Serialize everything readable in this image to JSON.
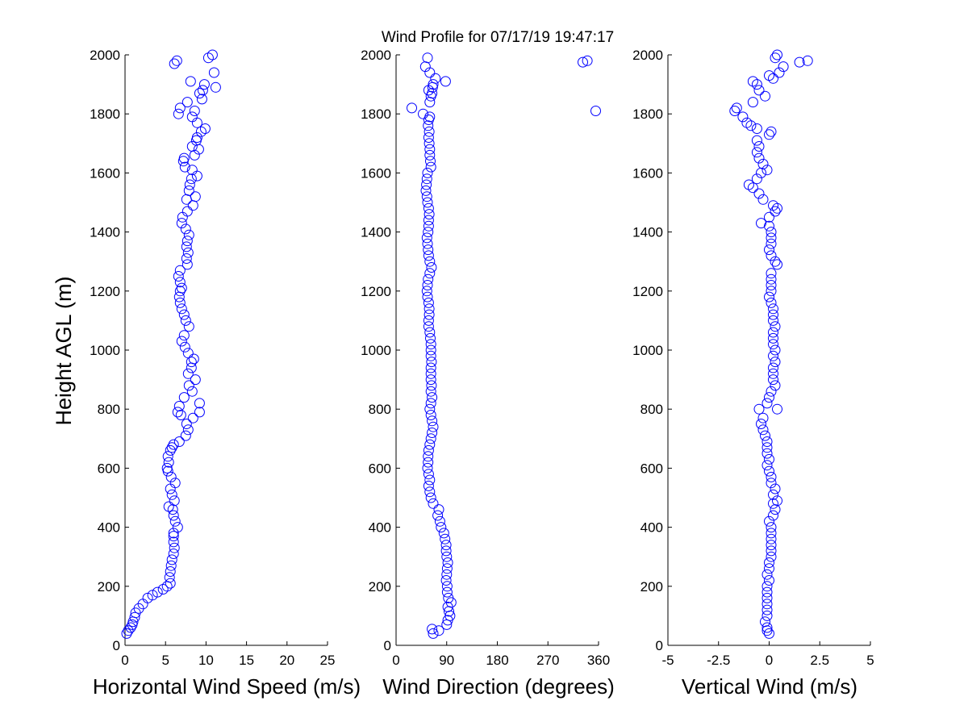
{
  "title": "Wind Profile for  07/17/19 19:47:17",
  "ylabel": "Height AGL (m)",
  "marker_color": "#0000ff",
  "chart_data": [
    {
      "type": "scatter",
      "xlabel": "Horizontal Wind Speed (m/s)",
      "ylabel": "Height AGL (m)",
      "xlim": [
        0,
        25
      ],
      "ylim": [
        0,
        2000
      ],
      "xticks": [
        "0",
        "5",
        "10",
        "15",
        "20",
        "25"
      ],
      "xtick_values": [
        0,
        5,
        10,
        15,
        20,
        25
      ],
      "yticks": [
        "0",
        "200",
        "400",
        "600",
        "800",
        "1000",
        "1200",
        "1400",
        "1600",
        "1800",
        "2000"
      ],
      "ytick_values": [
        0,
        200,
        400,
        600,
        800,
        1000,
        1200,
        1400,
        1600,
        1800,
        2000
      ],
      "grid": false,
      "marker": "open-circle",
      "points": [
        [
          0.2,
          40
        ],
        [
          0.4,
          50
        ],
        [
          0.7,
          60
        ],
        [
          0.9,
          70
        ],
        [
          1.0,
          80
        ],
        [
          1.2,
          95
        ],
        [
          1.3,
          110
        ],
        [
          1.7,
          125
        ],
        [
          2.2,
          140
        ],
        [
          2.8,
          160
        ],
        [
          3.4,
          170
        ],
        [
          4.0,
          180
        ],
        [
          4.7,
          190
        ],
        [
          5.2,
          200
        ],
        [
          5.6,
          210
        ],
        [
          5.5,
          230
        ],
        [
          5.6,
          250
        ],
        [
          5.7,
          270
        ],
        [
          5.8,
          290
        ],
        [
          6.0,
          310
        ],
        [
          6.1,
          330
        ],
        [
          6.0,
          350
        ],
        [
          6.0,
          370
        ],
        [
          6.0,
          380
        ],
        [
          6.5,
          400
        ],
        [
          6.2,
          420
        ],
        [
          6.0,
          440
        ],
        [
          5.9,
          460
        ],
        [
          5.4,
          470
        ],
        [
          6.1,
          490
        ],
        [
          5.8,
          510
        ],
        [
          5.6,
          530
        ],
        [
          6.2,
          550
        ],
        [
          5.7,
          570
        ],
        [
          5.3,
          590
        ],
        [
          5.2,
          600
        ],
        [
          5.4,
          620
        ],
        [
          5.3,
          640
        ],
        [
          5.6,
          660
        ],
        [
          5.8,
          670
        ],
        [
          6.0,
          680
        ],
        [
          6.7,
          690
        ],
        [
          7.5,
          710
        ],
        [
          7.8,
          730
        ],
        [
          7.6,
          750
        ],
        [
          8.4,
          770
        ],
        [
          6.9,
          780
        ],
        [
          6.5,
          790
        ],
        [
          9.2,
          790
        ],
        [
          6.7,
          810
        ],
        [
          9.2,
          820
        ],
        [
          7.3,
          840
        ],
        [
          8.3,
          860
        ],
        [
          7.9,
          880
        ],
        [
          8.7,
          900
        ],
        [
          7.8,
          920
        ],
        [
          8.2,
          940
        ],
        [
          8.2,
          960
        ],
        [
          8.5,
          970
        ],
        [
          7.8,
          990
        ],
        [
          7.4,
          1010
        ],
        [
          7.0,
          1030
        ],
        [
          7.3,
          1050
        ],
        [
          7.9,
          1080
        ],
        [
          7.5,
          1100
        ],
        [
          7.3,
          1120
        ],
        [
          7.0,
          1140
        ],
        [
          6.8,
          1160
        ],
        [
          6.7,
          1180
        ],
        [
          6.8,
          1200
        ],
        [
          7.0,
          1210
        ],
        [
          6.8,
          1230
        ],
        [
          6.6,
          1250
        ],
        [
          6.8,
          1270
        ],
        [
          7.7,
          1290
        ],
        [
          7.6,
          1310
        ],
        [
          7.8,
          1330
        ],
        [
          7.6,
          1350
        ],
        [
          7.7,
          1370
        ],
        [
          7.9,
          1390
        ],
        [
          7.5,
          1410
        ],
        [
          7.0,
          1430
        ],
        [
          7.1,
          1450
        ],
        [
          7.7,
          1470
        ],
        [
          8.4,
          1490
        ],
        [
          7.6,
          1510
        ],
        [
          8.7,
          1520
        ],
        [
          7.9,
          1540
        ],
        [
          8.0,
          1560
        ],
        [
          8.2,
          1580
        ],
        [
          8.9,
          1590
        ],
        [
          8.3,
          1610
        ],
        [
          7.4,
          1620
        ],
        [
          7.2,
          1640
        ],
        [
          7.3,
          1650
        ],
        [
          8.6,
          1660
        ],
        [
          9.1,
          1680
        ],
        [
          8.3,
          1690
        ],
        [
          8.8,
          1710
        ],
        [
          8.9,
          1720
        ],
        [
          9.4,
          1740
        ],
        [
          9.9,
          1750
        ],
        [
          8.9,
          1770
        ],
        [
          8.3,
          1790
        ],
        [
          8.6,
          1810
        ],
        [
          6.8,
          1820
        ],
        [
          6.6,
          1800
        ],
        [
          7.7,
          1840
        ],
        [
          9.5,
          1850
        ],
        [
          9.2,
          1870
        ],
        [
          9.6,
          1880
        ],
        [
          11.2,
          1890
        ],
        [
          9.8,
          1900
        ],
        [
          8.1,
          1910
        ],
        [
          11.0,
          1940
        ],
        [
          6.1,
          1970
        ],
        [
          6.4,
          1980
        ],
        [
          10.3,
          1990
        ],
        [
          10.8,
          2000
        ]
      ]
    },
    {
      "type": "scatter",
      "xlabel": "Wind Direction (degrees)",
      "ylabel": "",
      "xlim": [
        0,
        360
      ],
      "ylim": [
        0,
        2000
      ],
      "xticks": [
        "0",
        "90",
        "180",
        "270",
        "360"
      ],
      "xtick_values": [
        0,
        90,
        180,
        270,
        360
      ],
      "yticks": [
        "0",
        "200",
        "400",
        "600",
        "800",
        "1000",
        "1200",
        "1400",
        "1600",
        "1800",
        "2000"
      ],
      "ytick_values": [
        0,
        200,
        400,
        600,
        800,
        1000,
        1200,
        1400,
        1600,
        1800,
        2000
      ],
      "grid": false,
      "marker": "open-circle",
      "points": [
        [
          66,
          40
        ],
        [
          64,
          55
        ],
        [
          76,
          50
        ],
        [
          90,
          70
        ],
        [
          92,
          85
        ],
        [
          96,
          100
        ],
        [
          94,
          115
        ],
        [
          92,
          130
        ],
        [
          98,
          145
        ],
        [
          93,
          160
        ],
        [
          91,
          180
        ],
        [
          91,
          200
        ],
        [
          89,
          220
        ],
        [
          90,
          240
        ],
        [
          91,
          260
        ],
        [
          92,
          280
        ],
        [
          90,
          300
        ],
        [
          89,
          320
        ],
        [
          89,
          340
        ],
        [
          87,
          360
        ],
        [
          85,
          380
        ],
        [
          80,
          400
        ],
        [
          78,
          420
        ],
        [
          74,
          440
        ],
        [
          76,
          460
        ],
        [
          66,
          480
        ],
        [
          62,
          500
        ],
        [
          60,
          520
        ],
        [
          58,
          540
        ],
        [
          60,
          560
        ],
        [
          58,
          580
        ],
        [
          56,
          600
        ],
        [
          57,
          620
        ],
        [
          57,
          640
        ],
        [
          58,
          660
        ],
        [
          60,
          680
        ],
        [
          62,
          700
        ],
        [
          64,
          720
        ],
        [
          66,
          740
        ],
        [
          64,
          760
        ],
        [
          62,
          780
        ],
        [
          60,
          800
        ],
        [
          62,
          820
        ],
        [
          64,
          840
        ],
        [
          62,
          860
        ],
        [
          63,
          880
        ],
        [
          62,
          900
        ],
        [
          62,
          920
        ],
        [
          62,
          940
        ],
        [
          63,
          960
        ],
        [
          62,
          980
        ],
        [
          62,
          1000
        ],
        [
          62,
          1020
        ],
        [
          61,
          1040
        ],
        [
          60,
          1060
        ],
        [
          58,
          1080
        ],
        [
          58,
          1100
        ],
        [
          59,
          1120
        ],
        [
          59,
          1140
        ],
        [
          58,
          1160
        ],
        [
          56,
          1180
        ],
        [
          55,
          1200
        ],
        [
          56,
          1220
        ],
        [
          57,
          1240
        ],
        [
          60,
          1260
        ],
        [
          63,
          1280
        ],
        [
          60,
          1300
        ],
        [
          58,
          1320
        ],
        [
          57,
          1340
        ],
        [
          56,
          1360
        ],
        [
          55,
          1380
        ],
        [
          57,
          1400
        ],
        [
          58,
          1420
        ],
        [
          58,
          1440
        ],
        [
          59,
          1460
        ],
        [
          58,
          1480
        ],
        [
          56,
          1500
        ],
        [
          55,
          1520
        ],
        [
          53,
          1540
        ],
        [
          54,
          1560
        ],
        [
          55,
          1580
        ],
        [
          56,
          1600
        ],
        [
          62,
          1620
        ],
        [
          61,
          1640
        ],
        [
          60,
          1660
        ],
        [
          60,
          1680
        ],
        [
          59,
          1700
        ],
        [
          58,
          1720
        ],
        [
          59,
          1740
        ],
        [
          57,
          1760
        ],
        [
          58,
          1780
        ],
        [
          60,
          1790
        ],
        [
          48,
          1800
        ],
        [
          28,
          1820
        ],
        [
          60,
          1840
        ],
        [
          62,
          1860
        ],
        [
          58,
          1880
        ],
        [
          65,
          1890
        ],
        [
          88,
          1910
        ],
        [
          70,
          1920
        ],
        [
          60,
          1940
        ],
        [
          56,
          1990
        ],
        [
          52,
          1960
        ],
        [
          340,
          1980
        ],
        [
          332,
          1975
        ],
        [
          355,
          1810
        ],
        [
          64,
          1870
        ],
        [
          66,
          1900
        ]
      ]
    },
    {
      "type": "scatter",
      "xlabel": "Vertical Wind (m/s)",
      "ylabel": "",
      "xlim": [
        -5,
        5
      ],
      "ylim": [
        0,
        2000
      ],
      "xticks": [
        "-5",
        "-2.5",
        "0",
        "2.5",
        "5"
      ],
      "xtick_values": [
        -5,
        -2.5,
        0,
        2.5,
        5
      ],
      "yticks": [
        "0",
        "200",
        "400",
        "600",
        "800",
        "1000",
        "1200",
        "1400",
        "1600",
        "1800",
        "2000"
      ],
      "ytick_values": [
        0,
        200,
        400,
        600,
        800,
        1000,
        1200,
        1400,
        1600,
        1800,
        2000
      ],
      "grid": false,
      "marker": "open-circle",
      "points": [
        [
          0.0,
          40
        ],
        [
          -0.1,
          50
        ],
        [
          -0.1,
          60
        ],
        [
          -0.2,
          80
        ],
        [
          -0.1,
          100
        ],
        [
          -0.1,
          120
        ],
        [
          -0.1,
          140
        ],
        [
          -0.1,
          160
        ],
        [
          -0.1,
          180
        ],
        [
          -0.1,
          200
        ],
        [
          0.0,
          220
        ],
        [
          -0.1,
          240
        ],
        [
          0.0,
          260
        ],
        [
          0.0,
          280
        ],
        [
          0.1,
          300
        ],
        [
          0.1,
          320
        ],
        [
          0.1,
          340
        ],
        [
          0.1,
          360
        ],
        [
          0.1,
          380
        ],
        [
          0.1,
          400
        ],
        [
          0.0,
          420
        ],
        [
          0.2,
          440
        ],
        [
          0.3,
          460
        ],
        [
          0.2,
          480
        ],
        [
          0.4,
          490
        ],
        [
          0.2,
          510
        ],
        [
          0.3,
          530
        ],
        [
          0.1,
          550
        ],
        [
          0.1,
          570
        ],
        [
          0.0,
          590
        ],
        [
          -0.1,
          610
        ],
        [
          0.0,
          630
        ],
        [
          -0.1,
          650
        ],
        [
          -0.1,
          670
        ],
        [
          -0.1,
          690
        ],
        [
          -0.2,
          710
        ],
        [
          -0.3,
          730
        ],
        [
          -0.4,
          750
        ],
        [
          -0.3,
          770
        ],
        [
          -0.5,
          800
        ],
        [
          0.4,
          800
        ],
        [
          -0.1,
          820
        ],
        [
          0.0,
          840
        ],
        [
          0.1,
          860
        ],
        [
          0.3,
          880
        ],
        [
          0.2,
          900
        ],
        [
          0.2,
          920
        ],
        [
          0.2,
          940
        ],
        [
          0.3,
          960
        ],
        [
          0.2,
          980
        ],
        [
          0.3,
          1000
        ],
        [
          0.2,
          1020
        ],
        [
          0.2,
          1040
        ],
        [
          0.2,
          1060
        ],
        [
          0.3,
          1080
        ],
        [
          0.2,
          1100
        ],
        [
          0.2,
          1120
        ],
        [
          0.2,
          1140
        ],
        [
          0.1,
          1160
        ],
        [
          0.0,
          1180
        ],
        [
          0.1,
          1200
        ],
        [
          0.1,
          1220
        ],
        [
          0.1,
          1240
        ],
        [
          0.1,
          1260
        ],
        [
          0.4,
          1290
        ],
        [
          0.3,
          1300
        ],
        [
          0.1,
          1320
        ],
        [
          0.0,
          1340
        ],
        [
          0.1,
          1360
        ],
        [
          0.1,
          1380
        ],
        [
          0.1,
          1400
        ],
        [
          0.0,
          1420
        ],
        [
          -0.4,
          1430
        ],
        [
          0.0,
          1450
        ],
        [
          0.3,
          1470
        ],
        [
          0.4,
          1480
        ],
        [
          0.2,
          1490
        ],
        [
          -0.3,
          1510
        ],
        [
          -0.5,
          1530
        ],
        [
          -0.8,
          1550
        ],
        [
          -1.0,
          1560
        ],
        [
          -0.6,
          1580
        ],
        [
          -0.4,
          1600
        ],
        [
          -0.1,
          1610
        ],
        [
          -0.3,
          1630
        ],
        [
          -0.5,
          1650
        ],
        [
          -0.6,
          1670
        ],
        [
          -0.5,
          1690
        ],
        [
          -0.6,
          1710
        ],
        [
          0.0,
          1730
        ],
        [
          0.1,
          1740
        ],
        [
          -0.6,
          1750
        ],
        [
          -0.9,
          1760
        ],
        [
          -1.1,
          1770
        ],
        [
          -1.3,
          1790
        ],
        [
          -1.7,
          1810
        ],
        [
          -1.6,
          1820
        ],
        [
          -0.8,
          1840
        ],
        [
          -0.2,
          1860
        ],
        [
          -0.5,
          1880
        ],
        [
          -0.6,
          1900
        ],
        [
          -0.8,
          1910
        ],
        [
          0.2,
          1920
        ],
        [
          0.0,
          1930
        ],
        [
          0.5,
          1940
        ],
        [
          0.7,
          1960
        ],
        [
          1.5,
          1975
        ],
        [
          1.9,
          1980
        ],
        [
          0.3,
          1990
        ],
        [
          0.4,
          2000
        ]
      ]
    }
  ]
}
